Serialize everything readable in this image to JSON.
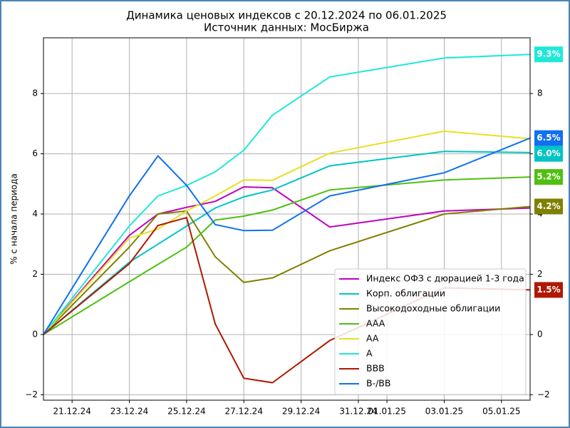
{
  "chart_data": {
    "type": "line",
    "title": "Динамика ценовых индексов с 20.12.2024 по 06.01.2025",
    "subtitle": "Источник данных: МосБиржа",
    "y_label": "% с начала периода",
    "x": [
      "20.12.24",
      "23.12.24",
      "24.12.24",
      "25.12.24",
      "26.12.24",
      "27.12.24",
      "28.12.24",
      "30.12.24",
      "03.01.25",
      "06.01.25"
    ],
    "xlim": [
      "20.12.24",
      "06.01.25"
    ],
    "xticks": [
      "21.12.24",
      "23.12.24",
      "25.12.24",
      "27.12.24",
      "29.12.24",
      "31.12.24",
      "01.01.25",
      "03.01.25",
      "05.01.25"
    ],
    "ylim": [
      -2.18,
      9.85
    ],
    "yticks": [
      {
        "value": -2,
        "label": "−2"
      },
      0,
      2,
      4,
      6,
      8
    ],
    "grid": true,
    "legend": "lower right",
    "series": [
      {
        "name": "Индекс ОФЗ с дюрацией 1-3 года",
        "color": "#c000c0",
        "values": [
          0,
          3.29,
          4.0,
          4.22,
          4.42,
          4.9,
          4.87,
          3.57,
          4.1,
          4.2
        ]
      },
      {
        "name": "Корп. облигации",
        "color": "#00c4c4",
        "values": [
          0,
          2.4,
          3.0,
          3.6,
          4.2,
          4.57,
          4.8,
          5.6,
          6.08,
          6.04
        ],
        "value_labels": [
          null,
          null,
          null,
          null,
          null,
          null,
          null,
          null,
          null,
          "6.0%"
        ]
      },
      {
        "name": "Высокодоходные облигации",
        "color": "#808000",
        "values": [
          0,
          2.9,
          4.0,
          4.1,
          2.58,
          1.73,
          1.88,
          2.78,
          4.0,
          4.25
        ],
        "value_labels": [
          null,
          null,
          null,
          null,
          null,
          null,
          null,
          null,
          null,
          "4.2%"
        ]
      },
      {
        "name": "AAA",
        "color": "#50c010",
        "values": [
          0,
          1.75,
          2.33,
          2.9,
          3.8,
          3.93,
          4.13,
          4.8,
          5.13,
          5.23
        ],
        "value_labels": [
          null,
          null,
          null,
          null,
          null,
          null,
          null,
          null,
          null,
          "5.2%"
        ]
      },
      {
        "name": "AA",
        "color": "#e8e020",
        "values": [
          0,
          3.2,
          3.5,
          4.1,
          4.6,
          5.13,
          5.12,
          6.02,
          6.75,
          6.5
        ]
      },
      {
        "name": "A",
        "color": "#20e8d8",
        "values": [
          0,
          3.6,
          4.6,
          4.95,
          5.4,
          6.12,
          7.28,
          8.55,
          9.18,
          9.3
        ],
        "value_labels": [
          null,
          null,
          null,
          null,
          null,
          null,
          null,
          null,
          null,
          "9.3%"
        ]
      },
      {
        "name": "BBB",
        "color": "#b01800",
        "values": [
          0,
          2.35,
          3.62,
          3.88,
          0.35,
          -1.45,
          -1.6,
          -0.2,
          1.55,
          1.48
        ],
        "value_labels": [
          null,
          null,
          null,
          null,
          null,
          null,
          null,
          null,
          null,
          "1.5%"
        ]
      },
      {
        "name": "B-/BB",
        "color": "#1070f0",
        "values": [
          0,
          4.6,
          5.93,
          4.95,
          3.65,
          3.45,
          3.46,
          4.6,
          5.37,
          6.52
        ],
        "value_labels": [
          null,
          null,
          null,
          null,
          null,
          null,
          null,
          null,
          null,
          "6.5%"
        ]
      }
    ]
  }
}
